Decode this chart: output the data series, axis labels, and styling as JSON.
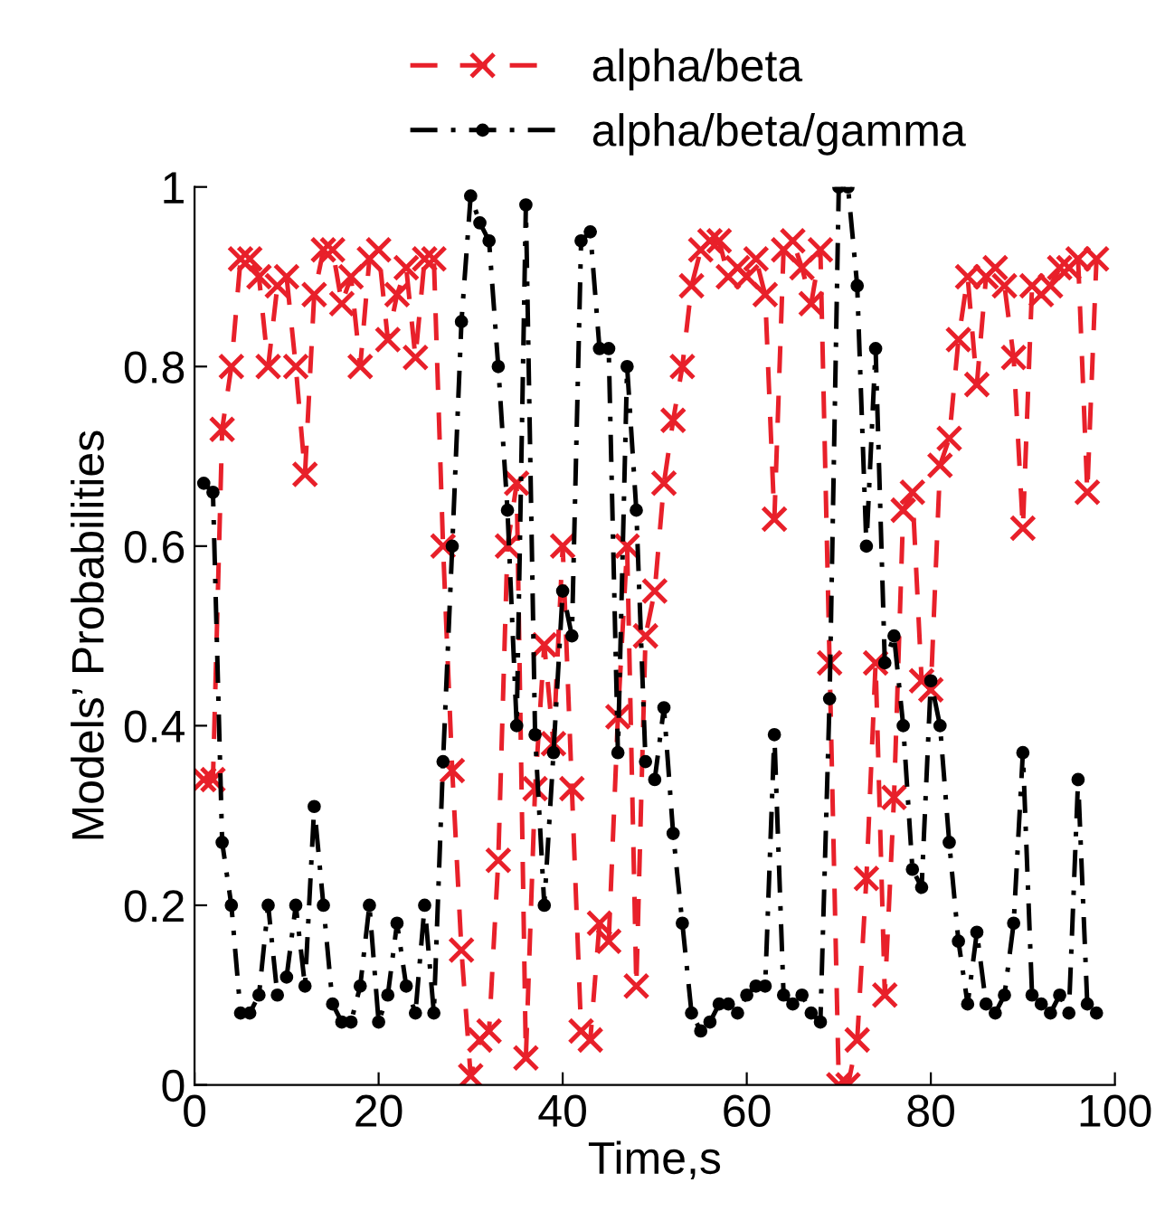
{
  "chart_data": {
    "type": "line",
    "xlabel": "Time,s",
    "ylabel": "Models’ Probabilities",
    "xlim": [
      0,
      100
    ],
    "xticks": [
      0,
      20,
      40,
      60,
      80,
      100
    ],
    "ylim": [
      0,
      1
    ],
    "yticks": [
      0,
      0.2,
      0.4,
      0.6,
      0.8,
      1
    ],
    "grid": false,
    "legend": "top",
    "x": [
      1,
      2,
      3,
      4,
      5,
      6,
      7,
      8,
      9,
      10,
      11,
      12,
      13,
      14,
      15,
      16,
      17,
      18,
      19,
      20,
      21,
      22,
      23,
      24,
      25,
      26,
      27,
      28,
      29,
      30,
      31,
      32,
      33,
      34,
      35,
      36,
      37,
      38,
      39,
      40,
      41,
      42,
      43,
      44,
      45,
      46,
      47,
      48,
      49,
      50,
      51,
      52,
      53,
      54,
      55,
      56,
      57,
      58,
      59,
      60,
      61,
      62,
      63,
      64,
      65,
      66,
      67,
      68,
      69,
      70,
      71,
      72,
      73,
      74,
      75,
      76,
      77,
      78,
      79,
      80,
      81,
      82,
      83,
      84,
      85,
      86,
      87,
      88,
      89,
      90,
      91,
      92,
      93,
      94,
      95,
      96,
      97,
      98
    ],
    "series": [
      {
        "name": "alpha/beta",
        "color": "#e8202a",
        "marker": "cross",
        "line_style": "dashed",
        "values": [
          0.34,
          0.34,
          0.73,
          0.8,
          0.92,
          0.92,
          0.9,
          0.8,
          0.89,
          0.9,
          0.8,
          0.68,
          0.88,
          0.93,
          0.93,
          0.87,
          0.9,
          0.8,
          0.92,
          0.93,
          0.83,
          0.88,
          0.91,
          0.81,
          0.92,
          0.92,
          0.6,
          0.35,
          0.15,
          0.01,
          0.05,
          0.06,
          0.25,
          0.6,
          0.67,
          0.03,
          0.33,
          0.49,
          0.38,
          0.6,
          0.33,
          0.06,
          0.05,
          0.18,
          0.16,
          0.41,
          0.6,
          0.11,
          0.5,
          0.55,
          0.67,
          0.74,
          0.8,
          0.89,
          0.93,
          0.94,
          0.94,
          0.9,
          0.91,
          0.9,
          0.92,
          0.88,
          0.63,
          0.93,
          0.94,
          0.91,
          0.87,
          0.93,
          0.47,
          0.0,
          0.0,
          0.05,
          0.23,
          0.47,
          0.1,
          0.32,
          0.64,
          0.66,
          0.45,
          0.44,
          0.69,
          0.72,
          0.83,
          0.9,
          0.78,
          0.9,
          0.91,
          0.89,
          0.81,
          0.62,
          0.89,
          0.88,
          0.89,
          0.91,
          0.91,
          0.92,
          0.66,
          0.92
        ]
      },
      {
        "name": "alpha/beta/gamma",
        "color": "#000000",
        "marker": "circle",
        "line_style": "dashdot",
        "values": [
          0.67,
          0.66,
          0.27,
          0.2,
          0.08,
          0.08,
          0.1,
          0.2,
          0.1,
          0.12,
          0.2,
          0.11,
          0.31,
          0.2,
          0.09,
          0.07,
          0.07,
          0.11,
          0.2,
          0.07,
          0.1,
          0.18,
          0.11,
          0.08,
          0.2,
          0.08,
          0.36,
          0.6,
          0.85,
          0.99,
          0.96,
          0.94,
          0.8,
          0.64,
          0.4,
          0.98,
          0.39,
          0.2,
          0.37,
          0.55,
          0.5,
          0.94,
          0.95,
          0.82,
          0.82,
          0.37,
          0.8,
          0.64,
          0.36,
          0.34,
          0.42,
          0.28,
          0.18,
          0.08,
          0.06,
          0.07,
          0.09,
          0.09,
          0.08,
          0.1,
          0.11,
          0.11,
          0.39,
          0.1,
          0.09,
          0.1,
          0.08,
          0.07,
          0.43,
          1.0,
          1.0,
          0.89,
          0.6,
          0.82,
          0.47,
          0.5,
          0.4,
          0.24,
          0.22,
          0.45,
          0.4,
          0.27,
          0.16,
          0.09,
          0.17,
          0.09,
          0.08,
          0.1,
          0.18,
          0.37,
          0.1,
          0.09,
          0.08,
          0.1,
          0.08,
          0.34,
          0.09,
          0.08
        ]
      }
    ]
  }
}
